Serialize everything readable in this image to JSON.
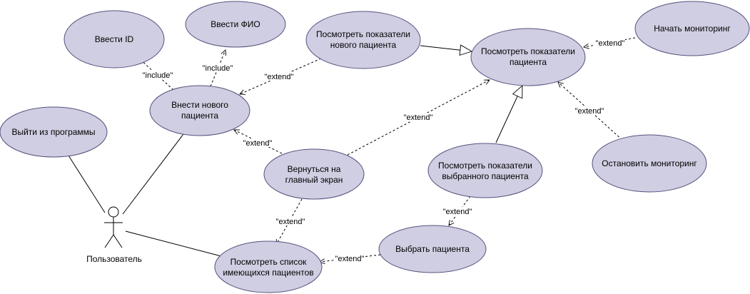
{
  "use_cases": {
    "enter_id": "Ввести ID",
    "enter_fio": "Ввести ФИО",
    "view_new_patient_line1": "Посмотреть показатели",
    "view_new_patient_line2": "нового пациента",
    "view_patient_line1": "Посмотреть показатели",
    "view_patient_line2": "пациента",
    "start_monitoring": "Начать мониторинг",
    "add_patient_line1": "Внести нового",
    "add_patient_line2": "пациента",
    "exit_program": "Выйти из программы",
    "go_back_line1": "Вернуться на",
    "go_back_line2": "главный экран",
    "view_selected_line1": "Посмотреть показатели",
    "view_selected_line2": "выбранного пациента",
    "stop_monitoring": "Остановить мониторинг",
    "select_patient": "Выбрать пациента",
    "view_list_line1": "Посмотреть список",
    "view_list_line2": "имеющихся пациентов"
  },
  "actor": {
    "name": "Пользователь"
  },
  "relations": {
    "include_1": "\"include\"",
    "include_2": "\"include\"",
    "extend_1": "\"extend\"",
    "extend_2": "\"extend\"",
    "extend_3": "\"extend\"",
    "extend_4": "\"extend\"",
    "extend_5": "\"extend\"",
    "extend_6": "\"extend\"",
    "extend_7": "\"extend\"",
    "extend_8": "\"extend\""
  },
  "colors": {
    "use_case_fill": "#d0cee2",
    "use_case_stroke": "#56517e"
  }
}
